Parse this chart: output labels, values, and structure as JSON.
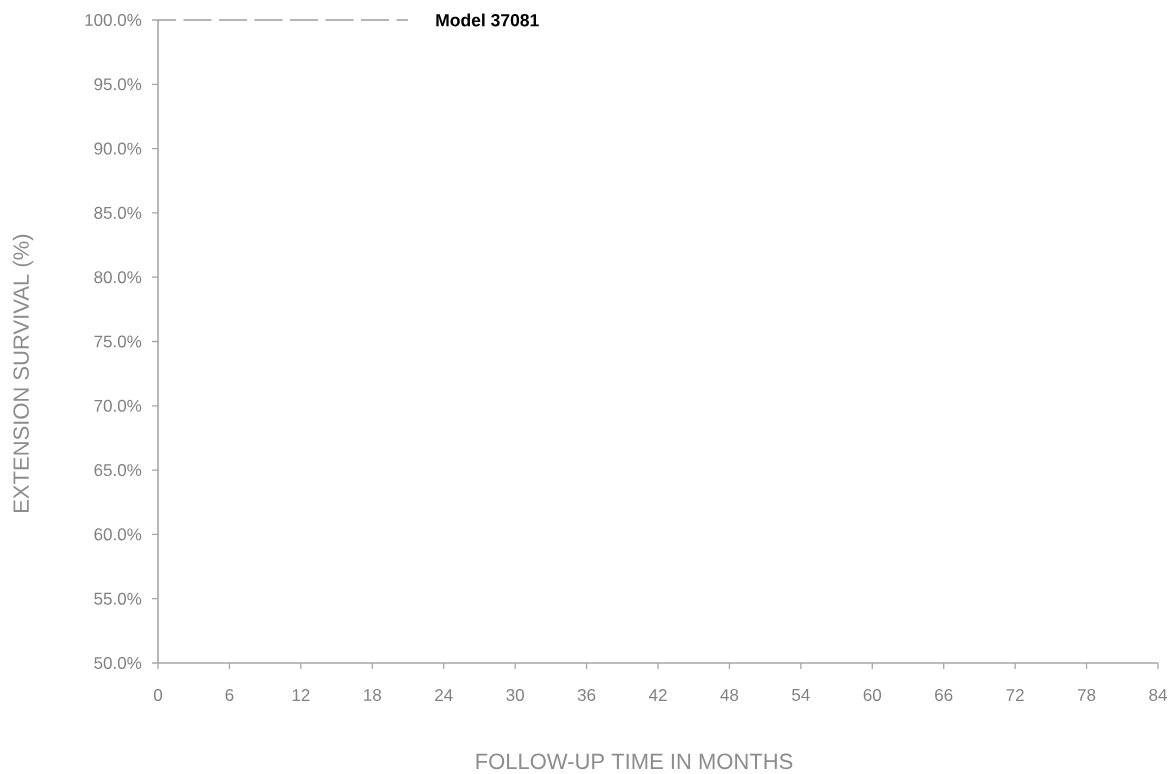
{
  "chart_data": {
    "type": "step",
    "xlabel": "FOLLOW-UP TIME IN MONTHS",
    "ylabel": "EXTENSION SURVIVAL (%)",
    "xlim": [
      0,
      84
    ],
    "ylim": [
      50,
      100
    ],
    "xticks": [
      0,
      6,
      12,
      18,
      24,
      30,
      36,
      42,
      48,
      54,
      60,
      66,
      72,
      78,
      84
    ],
    "yticks": [
      {
        "value": 50,
        "label": "50.0%"
      },
      {
        "value": 55,
        "label": "55.0%"
      },
      {
        "value": 60,
        "label": "60.0%"
      },
      {
        "value": 65,
        "label": "65.0%"
      },
      {
        "value": 70,
        "label": "70.0%"
      },
      {
        "value": 75,
        "label": "75.0%"
      },
      {
        "value": 80,
        "label": "80.0%"
      },
      {
        "value": 85,
        "label": "85.0%"
      },
      {
        "value": 90,
        "label": "90.0%"
      },
      {
        "value": 95,
        "label": "95.0%"
      },
      {
        "value": 100,
        "label": "100.0%"
      }
    ],
    "line_style": "dashed",
    "series": [
      {
        "name": "Model 37081",
        "color": "#6e6e6e",
        "x": [
          0,
          21
        ],
        "values": [
          100,
          100
        ]
      }
    ]
  }
}
